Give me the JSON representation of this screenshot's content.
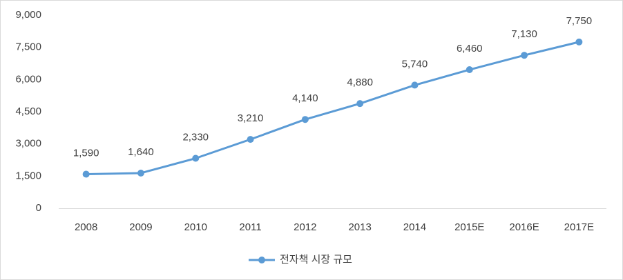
{
  "chart_data": {
    "type": "line",
    "categories": [
      "2008",
      "2009",
      "2010",
      "2011",
      "2012",
      "2013",
      "2014",
      "2015E",
      "2016E",
      "2017E"
    ],
    "series": [
      {
        "name": "전자책 시장 규모",
        "color": "#5b9bd5",
        "values": [
          1590,
          1640,
          2330,
          3210,
          4140,
          4880,
          5740,
          6460,
          7130,
          7750
        ],
        "value_labels": [
          "1,590",
          "1,640",
          "2,330",
          "3,210",
          "4,140",
          "4,880",
          "5,740",
          "6,460",
          "7,130",
          "7,750"
        ]
      }
    ],
    "ylim": [
      0,
      9000
    ],
    "yticks": [
      0,
      {
        "value": 1500,
        "label": "1,500"
      },
      {
        "value": 3000,
        "label": "3,000"
      },
      {
        "value": 4500,
        "label": "4,500"
      },
      {
        "value": 6000,
        "label": "6,000"
      },
      {
        "value": 7500,
        "label": "7,500"
      },
      {
        "value": 9000,
        "label": "9,000"
      }
    ],
    "grid": false,
    "legend": "bottom"
  }
}
